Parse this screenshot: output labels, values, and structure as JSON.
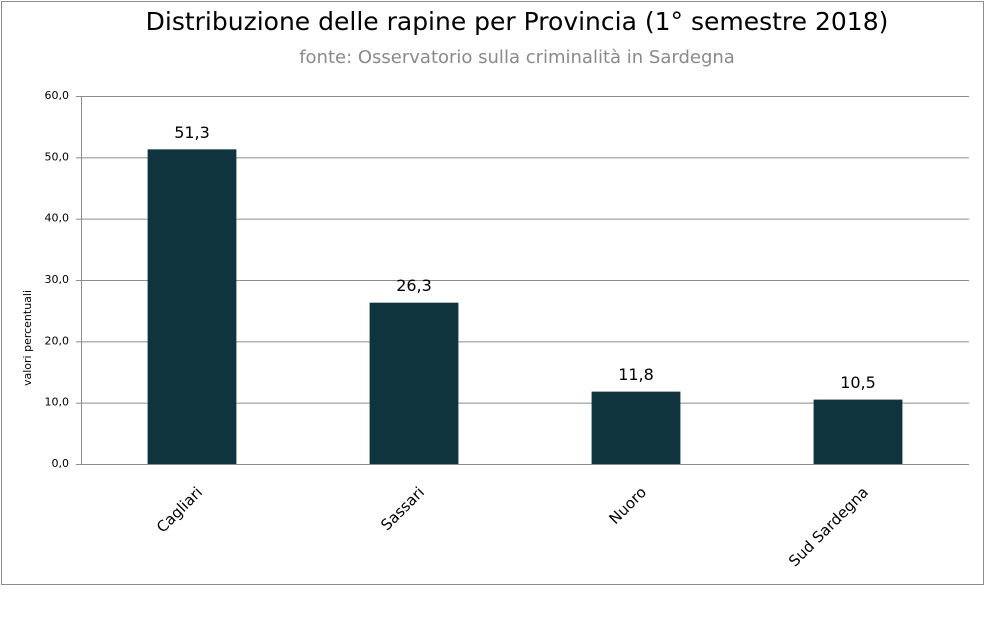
{
  "chart_data": {
    "type": "bar",
    "title": "Distribuzione delle rapine per Provincia (1° semestre 2018)",
    "subtitle": "fonte: Osservatorio sulla criminalità in Sardegna",
    "y_label": "valori percentuali",
    "categories": [
      "Cagliari",
      "Sassari",
      "Nuoro",
      "Sud Sardegna"
    ],
    "values": [
      51.3,
      26.3,
      11.8,
      10.5
    ],
    "value_labels": [
      "51,3",
      "26,3",
      "11,8",
      "10,5"
    ],
    "color": "#0f343e",
    "ylim": [
      0,
      60
    ],
    "yticks": [
      {
        "value": 0,
        "label": "0,0"
      },
      {
        "value": 10,
        "label": "10,0"
      },
      {
        "value": 20,
        "label": "20,0"
      },
      {
        "value": 30,
        "label": "30,0"
      },
      {
        "value": 40,
        "label": "40,0"
      },
      {
        "value": 50,
        "label": "50,0"
      },
      {
        "value": 60,
        "label": "60,0"
      }
    ],
    "grid": true
  }
}
